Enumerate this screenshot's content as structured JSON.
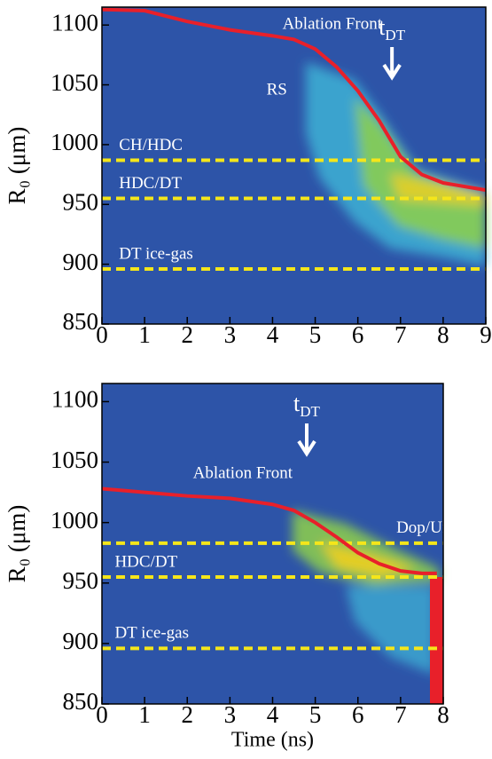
{
  "chart_data": [
    {
      "type": "line",
      "ylabel": "R₀ (μm)",
      "xlim": [
        0,
        9
      ],
      "xticks": [
        0,
        1,
        2,
        3,
        4,
        5,
        6,
        7,
        8,
        9
      ],
      "ylim": [
        850,
        1115
      ],
      "yticks": [
        850,
        900,
        950,
        1000,
        1050,
        1100
      ],
      "series": [
        {
          "name": "Ablation Front",
          "color": "#e8202a",
          "x": [
            0,
            1,
            2,
            3,
            4,
            4.5,
            5,
            5.5,
            6,
            6.5,
            7,
            7.5,
            8,
            9
          ],
          "values": [
            1113,
            1112,
            1103,
            1096,
            1091,
            1088,
            1080,
            1065,
            1045,
            1020,
            990,
            975,
            968,
            962
          ]
        }
      ],
      "interfaces": [
        {
          "name": "CH/HDC",
          "value": 987
        },
        {
          "name": "HDC/DT",
          "value": 955
        },
        {
          "name": "DT ice-gas",
          "value": 896
        }
      ],
      "interface_color": "#f5e61a",
      "annotations": [
        {
          "text": "RS"
        }
      ],
      "marker": {
        "text": "t",
        "sub": "DT",
        "x": 6.8
      }
    },
    {
      "type": "line",
      "xlabel": "Time (ns)",
      "ylabel": "R₀ (μm)",
      "xlim": [
        0,
        8
      ],
      "xticks": [
        0,
        1,
        2,
        3,
        4,
        5,
        6,
        7,
        8
      ],
      "ylim": [
        850,
        1115
      ],
      "yticks": [
        850,
        900,
        950,
        1000,
        1050,
        1100
      ],
      "series": [
        {
          "name": "Ablation Front",
          "color": "#e8202a",
          "x": [
            0,
            1,
            2,
            3,
            4,
            4.5,
            5,
            5.5,
            6,
            6.5,
            7,
            7.5,
            7.85
          ],
          "values": [
            1028,
            1025,
            1022,
            1020,
            1015,
            1010,
            1000,
            988,
            975,
            966,
            960,
            958,
            958
          ]
        }
      ],
      "interfaces": [
        {
          "name": "Dop/Undop",
          "value": 983
        },
        {
          "name": "HDC/DT",
          "value": 955
        },
        {
          "name": "DT ice-gas",
          "value": 896
        }
      ],
      "interface_color": "#f5e61a",
      "annotations": [],
      "marker": {
        "text": "t",
        "sub": "DT",
        "x": 4.8
      }
    }
  ]
}
